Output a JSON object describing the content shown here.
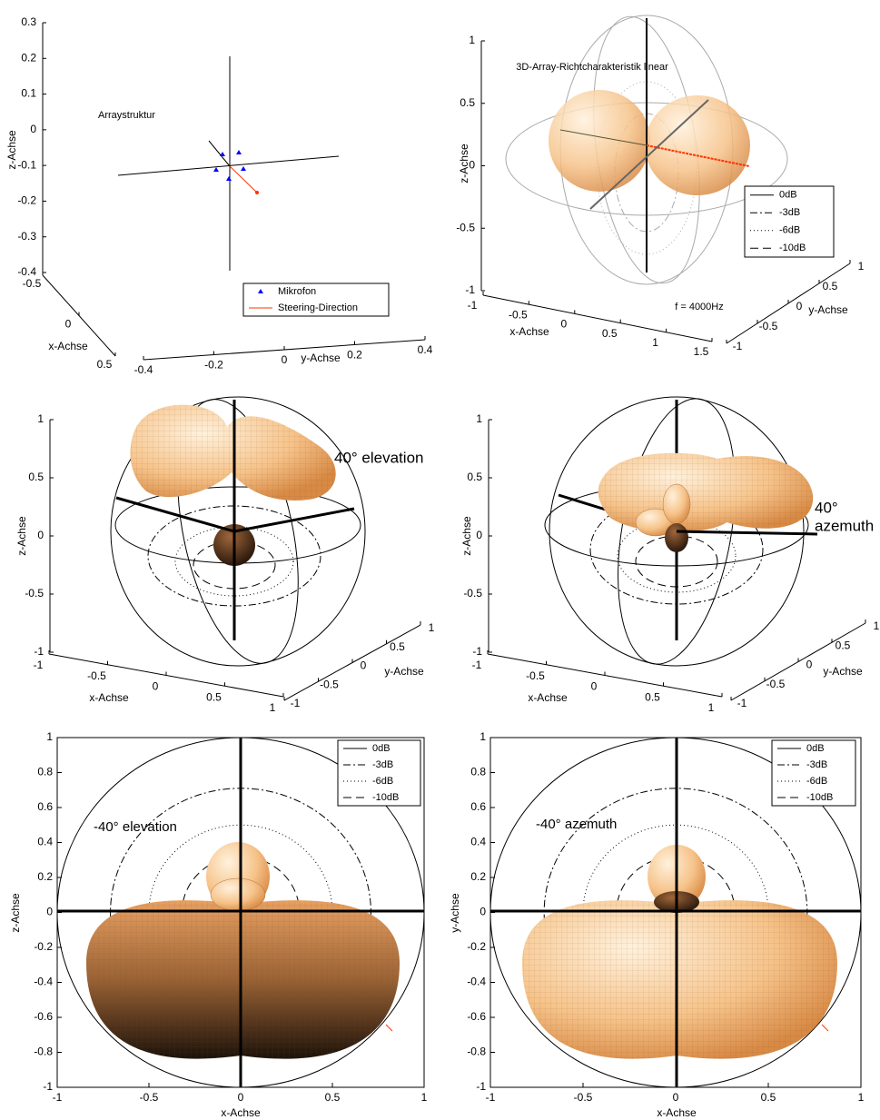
{
  "chart_data": [
    {
      "type": "3d",
      "annotation": "Arraystruktur",
      "xlabel": "x-Achse",
      "ylabel": "y-Achse",
      "zlabel": "z-Achse",
      "xlim": [
        -0.5,
        0.5
      ],
      "xticks": [
        -0.5,
        0,
        0.5
      ],
      "ylim": [
        -0.4,
        0.4
      ],
      "yticks": [
        -0.4,
        -0.2,
        0,
        0.2,
        0.4
      ],
      "zlim": [
        -0.4,
        0.3
      ],
      "zticks": [
        -0.4,
        -0.3,
        -0.2,
        -0.1,
        0,
        0.1,
        0.2,
        0.3
      ],
      "series": [
        {
          "name": "Mikrofon",
          "color": "#0000ff",
          "marker": "^"
        },
        {
          "name": "Steering-Direction",
          "color": "#ff3300",
          "style": "solid"
        }
      ]
    },
    {
      "type": "3d",
      "title": "3D-Array-Richtcharakteristik linear",
      "annotation": "f = 4000Hz",
      "xlabel": "x-Achse",
      "ylabel": "y-Achse",
      "zlabel": "z-Achse",
      "xlim": [
        -1,
        1.5
      ],
      "xticks": [
        -1,
        -0.5,
        0,
        0.5,
        1,
        1.5
      ],
      "ylim": [
        -1,
        1
      ],
      "yticks": [
        -1,
        -0.5,
        0,
        0.5,
        1
      ],
      "zlim": [
        -1,
        1
      ],
      "zticks": [
        -1,
        -0.5,
        0,
        0.5,
        1
      ],
      "series": [
        {
          "name": "0dB",
          "color": "#000000",
          "style": "solid"
        },
        {
          "name": "-3dB",
          "color": "#000000",
          "style": "dashdot"
        },
        {
          "name": "-6dB",
          "color": "#000000",
          "style": "dotted"
        },
        {
          "name": "-10dB",
          "color": "#000000",
          "style": "dashed"
        }
      ]
    },
    {
      "type": "3d",
      "annotation": "40° elevation",
      "xlabel": "x-Achse",
      "ylabel": "y-Achse",
      "zlabel": "z-Achse",
      "xlim": [
        -1,
        1
      ],
      "xticks": [
        -1,
        -0.5,
        0,
        0.5,
        1
      ],
      "ylim": [
        -1,
        1
      ],
      "yticks": [
        -1,
        -0.5,
        0,
        0.5,
        1
      ],
      "zlim": [
        -1,
        1
      ],
      "zticks": [
        -1,
        -0.5,
        0,
        0.5,
        1
      ]
    },
    {
      "type": "3d",
      "annotation": [
        "40°",
        "azemuth"
      ],
      "xlabel": "x-Achse",
      "ylabel": "y-Achse",
      "zlabel": "z-Achse",
      "xlim": [
        -1,
        1
      ],
      "xticks": [
        -1,
        -0.5,
        0,
        0.5,
        1
      ],
      "ylim": [
        -1,
        1
      ],
      "yticks": [
        -1,
        -0.5,
        0,
        0.5,
        1
      ],
      "zlim": [
        -1,
        1
      ],
      "zticks": [
        -1,
        -0.5,
        0,
        0.5,
        1
      ]
    },
    {
      "type": "2d",
      "annotation": "-40° elevation",
      "xlabel": "x-Achse",
      "ylabel": "z-Achse",
      "xlim": [
        -1,
        1
      ],
      "xticks": [
        -1,
        -0.5,
        0,
        0.5,
        1
      ],
      "ylim": [
        -1,
        1
      ],
      "yticks": [
        -1,
        -0.8,
        -0.6,
        -0.4,
        -0.2,
        0,
        0.2,
        0.4,
        0.6,
        0.8,
        1
      ],
      "series": [
        {
          "name": "0dB",
          "color": "#000000",
          "style": "solid",
          "radius": 1
        },
        {
          "name": "-3dB",
          "color": "#000000",
          "style": "dashdot",
          "radius": 0.71
        },
        {
          "name": "-6dB",
          "color": "#000000",
          "style": "dotted",
          "radius": 0.5
        },
        {
          "name": "-10dB",
          "color": "#000000",
          "style": "dashed",
          "radius": 0.32
        }
      ]
    },
    {
      "type": "2d",
      "annotation": "-40° azemuth",
      "xlabel": "x-Achse",
      "ylabel": "y-Achse",
      "xlim": [
        -1,
        1
      ],
      "xticks": [
        -1,
        -0.5,
        0,
        0.5,
        1
      ],
      "ylim": [
        -1,
        1
      ],
      "yticks": [
        -1,
        -0.8,
        -0.6,
        -0.4,
        -0.2,
        0,
        0.2,
        0.4,
        0.6,
        0.8,
        1
      ],
      "series": [
        {
          "name": "0dB",
          "color": "#000000",
          "style": "solid",
          "radius": 1
        },
        {
          "name": "-3dB",
          "color": "#000000",
          "style": "dashdot",
          "radius": 0.71
        },
        {
          "name": "-6dB",
          "color": "#000000",
          "style": "dotted",
          "radius": 0.5
        },
        {
          "name": "-10dB",
          "color": "#000000",
          "style": "dashed",
          "radius": 0.32
        }
      ]
    }
  ]
}
